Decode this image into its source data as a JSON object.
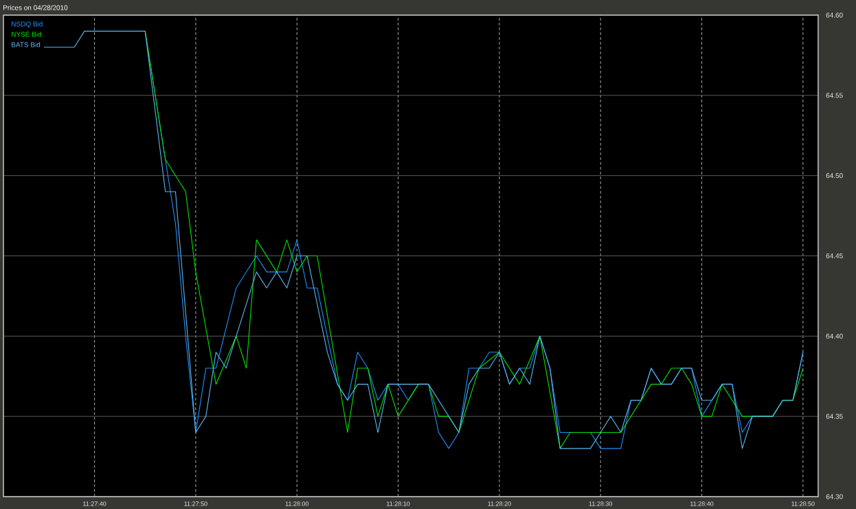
{
  "chart_data": {
    "type": "line",
    "title": "Prices on 04/28/2010",
    "xlim": [
      "2010-04-28T11:27:31",
      "2010-04-28T11:28:51.5"
    ],
    "xticks": [
      {
        "value": "2010-04-28T11:27:40",
        "label": "11:27:40"
      },
      {
        "value": "2010-04-28T11:27:50",
        "label": "11:27:50"
      },
      {
        "value": "2010-04-28T11:28:00",
        "label": "11:28:00"
      },
      {
        "value": "2010-04-28T11:28:10",
        "label": "11:28:10"
      },
      {
        "value": "2010-04-28T11:28:20",
        "label": "11:28:20"
      },
      {
        "value": "2010-04-28T11:28:30",
        "label": "11:28:30"
      },
      {
        "value": "2010-04-28T11:28:40",
        "label": "11:28:40"
      },
      {
        "value": "2010-04-28T11:28:50",
        "label": "11:28:50"
      }
    ],
    "ylim": [
      64.3,
      64.6
    ],
    "yticks": [
      {
        "value": 64.3,
        "label": "64.30"
      },
      64.35,
      {
        "value": 64.4,
        "label": "64.40"
      },
      64.45,
      {
        "value": 64.5,
        "label": "64.50"
      },
      64.55,
      {
        "value": 64.6,
        "label": "64.60"
      }
    ],
    "grid": true,
    "legend": "top left",
    "series": [
      {
        "name": "NSDQ Bid",
        "color": "#1e90ff",
        "x": [
          "2010-04-28T11:27:45",
          "2010-04-28T11:27:47",
          "2010-04-28T11:27:48",
          "2010-04-28T11:27:49",
          "2010-04-28T11:27:50",
          "2010-04-28T11:27:51",
          "2010-04-28T11:27:52",
          "2010-04-28T11:27:54",
          "2010-04-28T11:27:56",
          "2010-04-28T11:27:57",
          "2010-04-28T11:27:59",
          "2010-04-28T11:28:00",
          "2010-04-28T11:28:01",
          "2010-04-28T11:28:02",
          "2010-04-28T11:28:03",
          "2010-04-28T11:28:04",
          "2010-04-28T11:28:05",
          "2010-04-28T11:28:06",
          "2010-04-28T11:28:07",
          "2010-04-28T11:28:08",
          "2010-04-28T11:28:09",
          "2010-04-28T11:28:10",
          "2010-04-28T11:28:11",
          "2010-04-28T11:28:12",
          "2010-04-28T11:28:13",
          "2010-04-28T11:28:14",
          "2010-04-28T11:28:15",
          "2010-04-28T11:28:16",
          "2010-04-28T11:28:17",
          "2010-04-28T11:28:18",
          "2010-04-28T11:28:19",
          "2010-04-28T11:28:20",
          "2010-04-28T11:28:21",
          "2010-04-28T11:28:22",
          "2010-04-28T11:28:23",
          "2010-04-28T11:28:24",
          "2010-04-28T11:28:25",
          "2010-04-28T11:28:26",
          "2010-04-28T11:28:29",
          "2010-04-28T11:28:30",
          "2010-04-28T11:28:32",
          "2010-04-28T11:28:33",
          "2010-04-28T11:28:34",
          "2010-04-28T11:28:35",
          "2010-04-28T11:28:36",
          "2010-04-28T11:28:37",
          "2010-04-28T11:28:38",
          "2010-04-28T11:28:39",
          "2010-04-28T11:28:40",
          "2010-04-28T11:28:42",
          "2010-04-28T11:28:43",
          "2010-04-28T11:28:44",
          "2010-04-28T11:28:45",
          "2010-04-28T11:28:47",
          "2010-04-28T11:28:48",
          "2010-04-28T11:28:49",
          "2010-04-28T11:28:50"
        ],
        "values": [
          64.59,
          64.51,
          64.47,
          64.4,
          64.34,
          64.38,
          64.38,
          64.43,
          64.45,
          64.44,
          64.44,
          64.46,
          64.43,
          64.43,
          64.4,
          64.37,
          64.36,
          64.39,
          64.38,
          64.36,
          64.37,
          64.37,
          64.36,
          64.37,
          64.37,
          64.34,
          64.33,
          64.34,
          64.38,
          64.38,
          64.39,
          64.39,
          64.37,
          64.38,
          64.38,
          64.4,
          64.38,
          64.34,
          64.34,
          64.33,
          64.33,
          64.36,
          64.36,
          64.38,
          64.37,
          64.37,
          64.38,
          64.38,
          64.35,
          64.37,
          64.37,
          64.34,
          64.35,
          64.35,
          64.36,
          64.36,
          64.39
        ]
      },
      {
        "name": "NYSE Bid",
        "color": "#00e600",
        "x": [
          "2010-04-28T11:27:45",
          "2010-04-28T11:27:47",
          "2010-04-28T11:27:49",
          "2010-04-28T11:27:50",
          "2010-04-28T11:27:52",
          "2010-04-28T11:27:54",
          "2010-04-28T11:27:55",
          "2010-04-28T11:27:56",
          "2010-04-28T11:27:58",
          "2010-04-28T11:27:59",
          "2010-04-28T11:28:00",
          "2010-04-28T11:28:01",
          "2010-04-28T11:28:02",
          "2010-04-28T11:28:05",
          "2010-04-28T11:28:06",
          "2010-04-28T11:28:07",
          "2010-04-28T11:28:08",
          "2010-04-28T11:28:09",
          "2010-04-28T11:28:10",
          "2010-04-28T11:28:12",
          "2010-04-28T11:28:13",
          "2010-04-28T11:28:14",
          "2010-04-28T11:28:15",
          "2010-04-28T11:28:16",
          "2010-04-28T11:28:18",
          "2010-04-28T11:28:20",
          "2010-04-28T11:28:22",
          "2010-04-28T11:28:24",
          "2010-04-28T11:28:26",
          "2010-04-28T11:28:27",
          "2010-04-28T11:28:32",
          "2010-04-28T11:28:35",
          "2010-04-28T11:28:36",
          "2010-04-28T11:28:37",
          "2010-04-28T11:28:38",
          "2010-04-28T11:28:39",
          "2010-04-28T11:28:40",
          "2010-04-28T11:28:41",
          "2010-04-28T11:28:42",
          "2010-04-28T11:28:43",
          "2010-04-28T11:28:44",
          "2010-04-28T11:28:47",
          "2010-04-28T11:28:48",
          "2010-04-28T11:28:49",
          "2010-04-28T11:28:50"
        ],
        "values": [
          64.59,
          64.51,
          64.49,
          64.44,
          64.37,
          64.4,
          64.38,
          64.46,
          64.44,
          64.46,
          64.44,
          64.45,
          64.45,
          64.34,
          64.38,
          64.38,
          64.35,
          64.37,
          64.35,
          64.37,
          64.37,
          64.35,
          64.35,
          64.34,
          64.38,
          64.39,
          64.37,
          64.4,
          64.33,
          64.34,
          64.34,
          64.37,
          64.37,
          64.38,
          64.38,
          64.37,
          64.35,
          64.35,
          64.37,
          64.36,
          64.35,
          64.35,
          64.36,
          64.36,
          64.38
        ]
      },
      {
        "name": "BATS Bid",
        "color": "#5cb8f5",
        "x": [
          "2010-04-28T11:27:35",
          "2010-04-28T11:27:38",
          "2010-04-28T11:27:39",
          "2010-04-28T11:27:45",
          "2010-04-28T11:27:47",
          "2010-04-28T11:27:48",
          "2010-04-28T11:27:50",
          "2010-04-28T11:27:51",
          "2010-04-28T11:27:52",
          "2010-04-28T11:27:53",
          "2010-04-28T11:27:56",
          "2010-04-28T11:27:57",
          "2010-04-28T11:27:58",
          "2010-04-28T11:27:59",
          "2010-04-28T11:28:00",
          "2010-04-28T11:28:01",
          "2010-04-28T11:28:03",
          "2010-04-28T11:28:04",
          "2010-04-28T11:28:05",
          "2010-04-28T11:28:06",
          "2010-04-28T11:28:07",
          "2010-04-28T11:28:08",
          "2010-04-28T11:28:09",
          "2010-04-28T11:28:13",
          "2010-04-28T11:28:16",
          "2010-04-28T11:28:17",
          "2010-04-28T11:28:18",
          "2010-04-28T11:28:19",
          "2010-04-28T11:28:20",
          "2010-04-28T11:28:21",
          "2010-04-28T11:28:22",
          "2010-04-28T11:28:23",
          "2010-04-28T11:28:24",
          "2010-04-28T11:28:25",
          "2010-04-28T11:28:26",
          "2010-04-28T11:28:29",
          "2010-04-28T11:28:30",
          "2010-04-28T11:28:31",
          "2010-04-28T11:28:32",
          "2010-04-28T11:28:33",
          "2010-04-28T11:28:34",
          "2010-04-28T11:28:35",
          "2010-04-28T11:28:36",
          "2010-04-28T11:28:37",
          "2010-04-28T11:28:38",
          "2010-04-28T11:28:39",
          "2010-04-28T11:28:40",
          "2010-04-28T11:28:41",
          "2010-04-28T11:28:42",
          "2010-04-28T11:28:43",
          "2010-04-28T11:28:44",
          "2010-04-28T11:28:45",
          "2010-04-28T11:28:47",
          "2010-04-28T11:28:48",
          "2010-04-28T11:28:49",
          "2010-04-28T11:28:50"
        ],
        "values": [
          64.58,
          64.58,
          64.59,
          64.59,
          64.49,
          64.49,
          64.34,
          64.35,
          64.39,
          64.38,
          64.44,
          64.43,
          64.44,
          64.43,
          64.45,
          64.45,
          64.39,
          64.37,
          64.36,
          64.37,
          64.37,
          64.34,
          64.37,
          64.37,
          64.34,
          64.37,
          64.38,
          64.38,
          64.39,
          64.37,
          64.38,
          64.37,
          64.4,
          64.38,
          64.33,
          64.33,
          64.34,
          64.35,
          64.34,
          64.36,
          64.36,
          64.38,
          64.37,
          64.37,
          64.38,
          64.38,
          64.36,
          64.36,
          64.37,
          64.37,
          64.33,
          64.35,
          64.35,
          64.36,
          64.36,
          64.39
        ]
      }
    ]
  }
}
